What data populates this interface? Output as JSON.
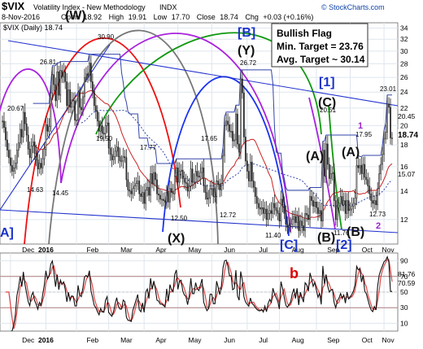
{
  "header": {
    "symbol": "$VIX",
    "name": "Volatility Index - New Methodology",
    "exchange": "INDX",
    "date": "8-Nov-2016",
    "open_label": "Open",
    "open": "18.92",
    "high_label": "High",
    "high": "19.91",
    "low_label": "Low",
    "low": "17.70",
    "close_label": "Close",
    "close": "18.74",
    "chg_label": "Chg",
    "chg": "+0.03 (+0.16%)",
    "watermark": "© StockCharts.com",
    "legend": "$VIX (Daily) 18.74"
  },
  "note": {
    "line1": "Bullish Flag",
    "line2": "Min. Target = 23.76",
    "line3": "Avg. Target ~ 30.14"
  },
  "colors": {
    "candle": "#222222",
    "grid": "#dfe6ee",
    "trend": "#2233cc",
    "ma_red": "#cc2222",
    "ma_blue": "#3344aa",
    "arc_purple": "#aa22dd",
    "arc_green": "#119911",
    "arc_gray": "#777777",
    "arc_red": "#ee1111",
    "arc_blue": "#1a33ee",
    "rsi_line": "#111111",
    "rsi_signal": "#dd4444",
    "rsi_band": "#b08080",
    "rsi_mark": "#dd0000",
    "wave_label": "#111111",
    "bracket_label": "#1a33cc",
    "sub_label": "#9922cc"
  },
  "chart_data": [
    {
      "type": "candlestick",
      "title": "$VIX (Daily) 18.74",
      "x_labels": [
        "Dec",
        "2016",
        "Feb",
        "Mar",
        "Apr",
        "May",
        "Jun",
        "Jul",
        "Aug",
        "Sep",
        "Oct",
        "Nov"
      ],
      "y_ticks": [
        12,
        14,
        16,
        18,
        20,
        22,
        24,
        26,
        28,
        30,
        32,
        34
      ],
      "ylim": [
        10.5,
        35
      ],
      "scale": "log",
      "grid": true,
      "series": [
        {
          "x": [
            "2015-11-23",
            "2015-11-24",
            "2015-11-25",
            "2015-11-27",
            "2015-11-30",
            "2015-12-01",
            "2015-12-02",
            "2015-12-03",
            "2015-12-04",
            "2015-12-07",
            "2015-12-08",
            "2015-12-09",
            "2015-12-10",
            "2015-12-11",
            "2015-12-14",
            "2015-12-15",
            "2015-12-16",
            "2015-12-17",
            "2015-12-18",
            "2015-12-21",
            "2015-12-22",
            "2015-12-23",
            "2015-12-24",
            "2015-12-28",
            "2015-12-29",
            "2015-12-30",
            "2015-12-31",
            "2016-01-04",
            "2016-01-05",
            "2016-01-06",
            "2016-01-07",
            "2016-01-08",
            "2016-01-11",
            "2016-01-12",
            "2016-01-13",
            "2016-01-14",
            "2016-01-15",
            "2016-01-19",
            "2016-01-20",
            "2016-01-21",
            "2016-01-22",
            "2016-01-25",
            "2016-01-26",
            "2016-01-27",
            "2016-01-28",
            "2016-01-29",
            "2016-02-01",
            "2016-02-02",
            "2016-02-03",
            "2016-02-04",
            "2016-02-05",
            "2016-02-08",
            "2016-02-09",
            "2016-02-10",
            "2016-02-11",
            "2016-02-12",
            "2016-02-16",
            "2016-02-17",
            "2016-02-18",
            "2016-02-19",
            "2016-02-22",
            "2016-02-23",
            "2016-02-24",
            "2016-02-25",
            "2016-02-26",
            "2016-02-29",
            "2016-03-01",
            "2016-03-02",
            "2016-03-03",
            "2016-03-04",
            "2016-03-07",
            "2016-03-08",
            "2016-03-09",
            "2016-03-10",
            "2016-03-11",
            "2016-03-14",
            "2016-03-15",
            "2016-03-16",
            "2016-03-17",
            "2016-03-18",
            "2016-03-21",
            "2016-03-22",
            "2016-03-23",
            "2016-03-24",
            "2016-03-28",
            "2016-03-29",
            "2016-03-30",
            "2016-03-31",
            "2016-04-01",
            "2016-04-04",
            "2016-04-05",
            "2016-04-06",
            "2016-04-07",
            "2016-04-08",
            "2016-04-11",
            "2016-04-12",
            "2016-04-13",
            "2016-04-14",
            "2016-04-15",
            "2016-04-18",
            "2016-04-19",
            "2016-04-20",
            "2016-04-21",
            "2016-04-22",
            "2016-04-25",
            "2016-04-26",
            "2016-04-27",
            "2016-04-28",
            "2016-04-29",
            "2016-05-02",
            "2016-05-03",
            "2016-05-04",
            "2016-05-05",
            "2016-05-06",
            "2016-05-09",
            "2016-05-10",
            "2016-05-11",
            "2016-05-12",
            "2016-05-13",
            "2016-05-16",
            "2016-05-17",
            "2016-05-18",
            "2016-05-19",
            "2016-05-20",
            "2016-05-23",
            "2016-05-24",
            "2016-05-25",
            "2016-05-26",
            "2016-05-27",
            "2016-05-31",
            "2016-06-01",
            "2016-06-02",
            "2016-06-03",
            "2016-06-06",
            "2016-06-07",
            "2016-06-08",
            "2016-06-09",
            "2016-06-10",
            "2016-06-13",
            "2016-06-14",
            "2016-06-15",
            "2016-06-16",
            "2016-06-17",
            "2016-06-20",
            "2016-06-21",
            "2016-06-22",
            "2016-06-23",
            "2016-06-24",
            "2016-06-27",
            "2016-06-28",
            "2016-06-29",
            "2016-06-30",
            "2016-07-01",
            "2016-07-05",
            "2016-07-06",
            "2016-07-07",
            "2016-07-08",
            "2016-07-11",
            "2016-07-12",
            "2016-07-13",
            "2016-07-14",
            "2016-07-15",
            "2016-07-18",
            "2016-07-19",
            "2016-07-20",
            "2016-07-21",
            "2016-07-22",
            "2016-07-25",
            "2016-07-26",
            "2016-07-27",
            "2016-07-28",
            "2016-07-29",
            "2016-08-01",
            "2016-08-02",
            "2016-08-03",
            "2016-08-04",
            "2016-08-05",
            "2016-08-08",
            "2016-08-09",
            "2016-08-10",
            "2016-08-11",
            "2016-08-12",
            "2016-08-15",
            "2016-08-16",
            "2016-08-17",
            "2016-08-18",
            "2016-08-19",
            "2016-08-22",
            "2016-08-23",
            "2016-08-24",
            "2016-08-25",
            "2016-08-26",
            "2016-08-29",
            "2016-08-30",
            "2016-08-31",
            "2016-09-01",
            "2016-09-02",
            "2016-09-06",
            "2016-09-07",
            "2016-09-08",
            "2016-09-09",
            "2016-09-12",
            "2016-09-13",
            "2016-09-14",
            "2016-09-15",
            "2016-09-16",
            "2016-09-19",
            "2016-09-20",
            "2016-09-21",
            "2016-09-22",
            "2016-09-23",
            "2016-09-26",
            "2016-09-27",
            "2016-09-28",
            "2016-09-29",
            "2016-09-30",
            "2016-10-03",
            "2016-10-04",
            "2016-10-05",
            "2016-10-06",
            "2016-10-07",
            "2016-10-10",
            "2016-10-11",
            "2016-10-12",
            "2016-10-13",
            "2016-10-14",
            "2016-10-17",
            "2016-10-18",
            "2016-10-19",
            "2016-10-20",
            "2016-10-21",
            "2016-10-24",
            "2016-10-25",
            "2016-10-26",
            "2016-10-27",
            "2016-10-28",
            "2016-10-31",
            "2016-11-01",
            "2016-11-02",
            "2016-11-03",
            "2016-11-04",
            "2016-11-07",
            "2016-11-08"
          ],
          "close": [
            20.5,
            19.8,
            18.5,
            17.5,
            16.8,
            16.1,
            15.6,
            15.9,
            16.3,
            17.5,
            18.2,
            19.6,
            18.8,
            21.5,
            20.2,
            19.0,
            17.6,
            16.8,
            17.9,
            18.3,
            17.2,
            16.6,
            15.8,
            16.3,
            15.9,
            16.7,
            17.6,
            20.1,
            19.4,
            19.9,
            23.9,
            26.4,
            25.0,
            22.9,
            26.8,
            23.6,
            27.0,
            26.1,
            26.8,
            25.4,
            22.3,
            24.3,
            22.1,
            23.0,
            22.9,
            20.6,
            20.6,
            24.0,
            22.1,
            21.8,
            23.4,
            26.0,
            26.5,
            26.3,
            28.1,
            25.4,
            24.1,
            22.3,
            21.6,
            20.5,
            19.4,
            20.0,
            19.2,
            19.1,
            20.0,
            20.3,
            17.7,
            17.1,
            16.6,
            16.9,
            17.4,
            17.8,
            16.9,
            16.5,
            16.5,
            16.9,
            16.8,
            14.9,
            14.1,
            14.0,
            13.8,
            14.2,
            14.4,
            14.6,
            14.8,
            13.8,
            13.6,
            13.9,
            13.1,
            14.1,
            14.3,
            13.7,
            15.4,
            14.6,
            15.5,
            14.9,
            13.8,
            13.7,
            13.4,
            13.4,
            13.3,
            13.2,
            13.9,
            13.2,
            14.2,
            13.9,
            13.8,
            15.2,
            15.9,
            14.7,
            15.6,
            15.7,
            15.0,
            14.7,
            14.6,
            14.0,
            14.4,
            15.8,
            14.7,
            14.7,
            15.6,
            15.2,
            15.1,
            15.5,
            15.9,
            14.4,
            13.9,
            13.4,
            13.5,
            14.2,
            14.2,
            13.6,
            13.6,
            14.8,
            14.5,
            14.1,
            14.6,
            17.0,
            20.0,
            20.5,
            20.1,
            19.4,
            19.4,
            18.4,
            18.5,
            21.3,
            18.1,
            17.3,
            25.8,
            23.9,
            18.8,
            16.5,
            15.6,
            14.8,
            16.4,
            14.8,
            14.3,
            13.6,
            13.1,
            12.8,
            12.7,
            12.8,
            12.4,
            12.7,
            12.0,
            12.4,
            12.6,
            12.4,
            13.1,
            12.8,
            12.6,
            12.4,
            11.9,
            13.4,
            13.0,
            12.4,
            11.7,
            11.5,
            11.6,
            11.7,
            12.0,
            12.2,
            11.8,
            12.2,
            11.3,
            11.9,
            11.6,
            11.3,
            12.4,
            12.3,
            12.0,
            13.6,
            13.3,
            12.9,
            13.2,
            12.8,
            12.4,
            12.6,
            11.9,
            17.5,
            15.2,
            18.1,
            16.2,
            15.0,
            15.4,
            15.5,
            13.3,
            12.0,
            12.8,
            13.1,
            13.6,
            13.0,
            13.3,
            12.4,
            13.3,
            12.6,
            12.7,
            12.9,
            13.1,
            13.5,
            16.1,
            15.9,
            16.1,
            15.4,
            16.2,
            15.1,
            14.9,
            14.4,
            13.8,
            13.3,
            13.1,
            13.3,
            13.0,
            14.2,
            15.4,
            16.2,
            17.1,
            18.6,
            19.3,
            22.5,
            22.1,
            18.7,
            18.7
          ]
        }
      ]
    },
    {
      "type": "line",
      "title": "RSI",
      "y_ticks": [
        10,
        30,
        50,
        70,
        90
      ],
      "ylim": [
        0,
        100
      ],
      "bands": [
        30,
        70
      ],
      "last_values": [
        "81.76",
        "70.59"
      ],
      "grid": true
    }
  ],
  "price_labels": {
    "p26_81": "26.81",
    "p30_90": "30.90",
    "p20_67": "20.67",
    "p14_63": "14.63",
    "p14_45": "14.45",
    "p19_50": "19.50",
    "p17_77": "17.77",
    "p12_50": "12.50",
    "p17_65": "17.65",
    "p12_72": "12.72",
    "p26_72": "26.72",
    "p11_40": "11.40",
    "p20_51": "20.51",
    "p11_76": "11.76",
    "p17_95": "17.95",
    "p12_73": "12.73",
    "p23_01": "23.01",
    "p20_45": "20.45",
    "p18_74": "18.74",
    "p15_07": "15.07"
  },
  "wave_labels": {
    "W": "(W)",
    "X": "(X)",
    "Y": "(Y)",
    "B_br": "[B]",
    "one_br": "[1]",
    "C": "(C)",
    "A1": "(A)",
    "A2": "(A)",
    "C_br": "[C]",
    "B1": "(B)",
    "B2": "(B)",
    "two_br": "[2]",
    "A_br": "A]",
    "sub1": "1",
    "sub2": "2",
    "b": "b"
  }
}
